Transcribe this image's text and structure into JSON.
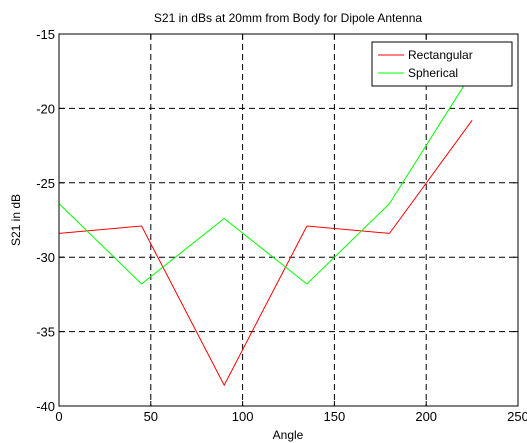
{
  "chart_data": {
    "type": "line",
    "title": "S21 in dBs at 20mm from Body for Dipole Antenna",
    "xlabel": "Angle",
    "ylabel": "S21 in dB",
    "xlim": [
      0,
      250
    ],
    "ylim": [
      -40,
      -15
    ],
    "xticks": [
      0,
      50,
      100,
      150,
      200,
      250
    ],
    "yticks": [
      -40,
      -35,
      -30,
      -25,
      -20,
      -15
    ],
    "grid": true,
    "legend_position": "top-right",
    "series": [
      {
        "name": "Rectangular",
        "color": "#ff0000",
        "x": [
          0,
          45,
          90,
          135,
          180,
          225
        ],
        "y": [
          -28.4,
          -27.9,
          -38.6,
          -27.9,
          -28.4,
          -20.8
        ]
      },
      {
        "name": "Spherical",
        "color": "#00ff00",
        "x": [
          0,
          45,
          90,
          135,
          180,
          225
        ],
        "y": [
          -26.4,
          -31.8,
          -27.4,
          -31.8,
          -26.4,
          -17.6
        ]
      }
    ]
  }
}
